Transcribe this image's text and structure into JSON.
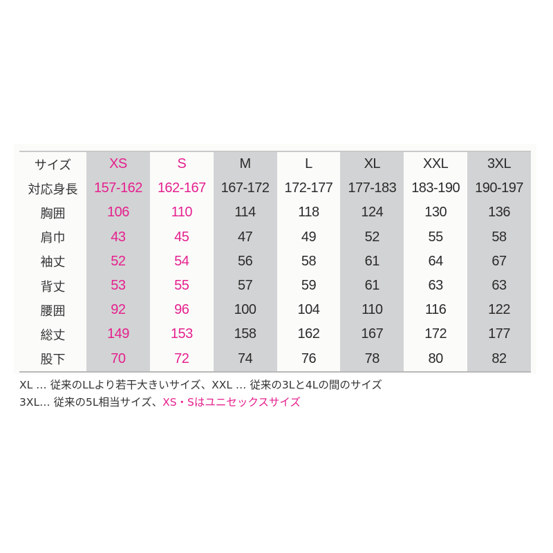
{
  "colors": {
    "accent_pink": "#e5208e",
    "shaded_column": "#d2d3d4"
  },
  "table": {
    "header": [
      "サイズ",
      "XS",
      "S",
      "M",
      "L",
      "XL",
      "XXL",
      "3XL"
    ],
    "rows": [
      [
        "対応身長",
        "157-162",
        "162-167",
        "167-172",
        "172-177",
        "177-183",
        "183-190",
        "190-197"
      ],
      [
        "胸囲",
        "106",
        "110",
        "114",
        "118",
        "124",
        "130",
        "136"
      ],
      [
        "肩巾",
        "43",
        "45",
        "47",
        "49",
        "52",
        "55",
        "58"
      ],
      [
        "袖丈",
        "52",
        "54",
        "56",
        "58",
        "61",
        "64",
        "67"
      ],
      [
        "背丈",
        "53",
        "55",
        "57",
        "59",
        "61",
        "63",
        "63"
      ],
      [
        "腰囲",
        "92",
        "96",
        "100",
        "104",
        "110",
        "116",
        "122"
      ],
      [
        "総丈",
        "149",
        "153",
        "158",
        "162",
        "167",
        "172",
        "177"
      ],
      [
        "股下",
        "70",
        "72",
        "74",
        "76",
        "78",
        "80",
        "82"
      ]
    ]
  },
  "notes": {
    "line1": "XL … 従来のLLより若干大きいサイズ、XXL … 従来の3Lと4Lの間のサイズ",
    "line2_prefix": "3XL… 従来の5L相当サイズ、",
    "line2_highlight": "XS・Sはユニセックスサイズ"
  }
}
